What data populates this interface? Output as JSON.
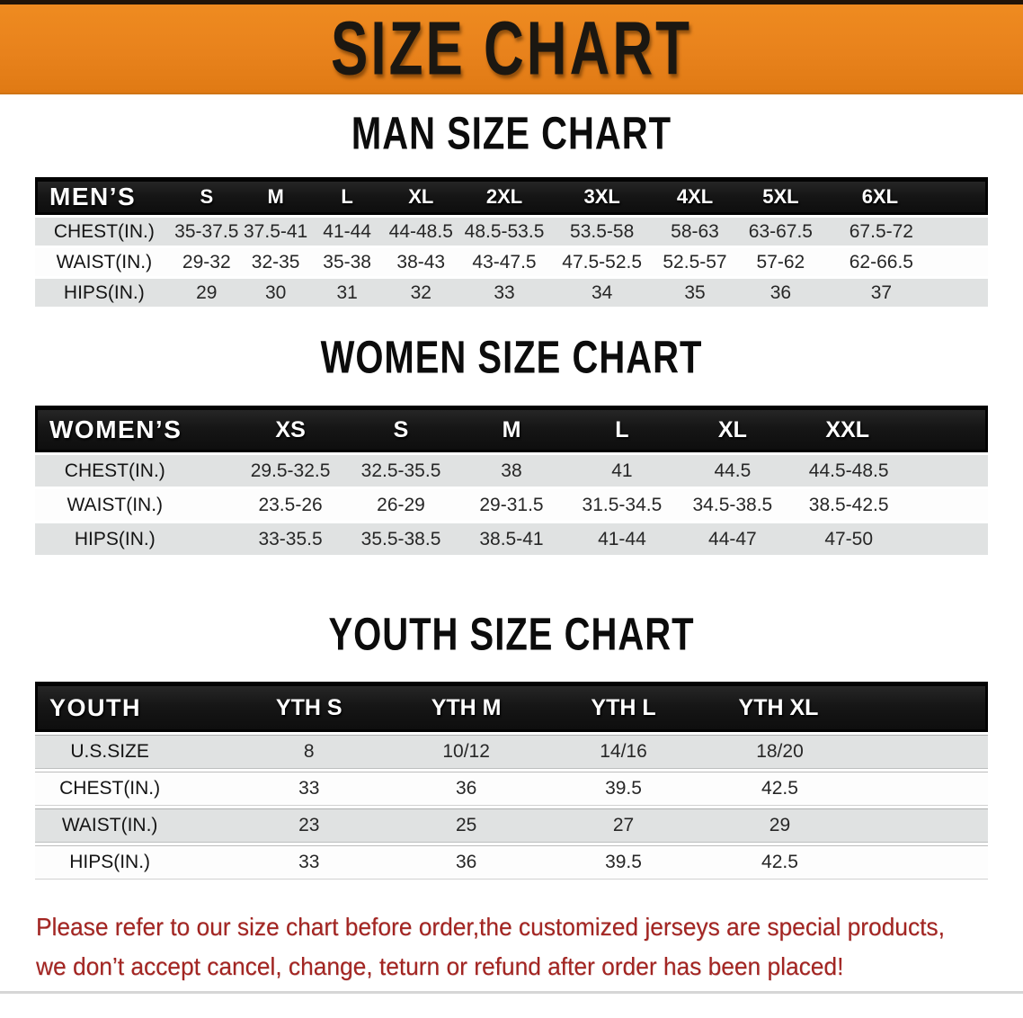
{
  "banner": {
    "title": "SIZE CHART",
    "bg_color": "#e8821c",
    "text_color": "#1b1711"
  },
  "chart_data": [
    {
      "type": "table",
      "id": "men",
      "title": "MAN SIZE CHART",
      "corner_label": "MEN’S",
      "columns": [
        "S",
        "M",
        "L",
        "XL",
        "2XL",
        "3XL",
        "4XL",
        "5XL",
        "6XL"
      ],
      "rows": [
        {
          "label": "CHEST(IN.)",
          "values": [
            "35-37.5",
            "37.5-41",
            "41-44",
            "44-48.5",
            "48.5-53.5",
            "53.5-58",
            "58-63",
            "63-67.5",
            "67.5-72"
          ]
        },
        {
          "label": "WAIST(IN.)",
          "values": [
            "29-32",
            "32-35",
            "35-38",
            "38-43",
            "43-47.5",
            "47.5-52.5",
            "52.5-57",
            "57-62",
            "62-66.5"
          ]
        },
        {
          "label": "HIPS(IN.)",
          "values": [
            "29",
            "30",
            "31",
            "32",
            "33",
            "34",
            "35",
            "36",
            "37"
          ]
        }
      ]
    },
    {
      "type": "table",
      "id": "women",
      "title": "WOMEN SIZE CHART",
      "corner_label": "WOMEN’S",
      "columns": [
        "XS",
        "S",
        "M",
        "L",
        "XL",
        "XXL"
      ],
      "rows": [
        {
          "label": "CHEST(IN.)",
          "values": [
            "29.5-32.5",
            "32.5-35.5",
            "38",
            "41",
            "44.5",
            "44.5-48.5"
          ]
        },
        {
          "label": "WAIST(IN.)",
          "values": [
            "23.5-26",
            "26-29",
            "29-31.5",
            "31.5-34.5",
            "34.5-38.5",
            "38.5-42.5"
          ]
        },
        {
          "label": "HIPS(IN.)",
          "values": [
            "33-35.5",
            "35.5-38.5",
            "38.5-41",
            "41-44",
            "44-47",
            "47-50"
          ]
        }
      ]
    },
    {
      "type": "table",
      "id": "youth",
      "title": "YOUTH SIZE CHART",
      "corner_label": "YOUTH",
      "columns": [
        "YTH S",
        "YTH M",
        "YTH L",
        "YTH XL"
      ],
      "rows": [
        {
          "label": "U.S.SIZE",
          "values": [
            "8",
            "10/12",
            "14/16",
            "18/20"
          ]
        },
        {
          "label": "CHEST(IN.)",
          "values": [
            "33",
            "36",
            "39.5",
            "42.5"
          ]
        },
        {
          "label": "WAIST(IN.)",
          "values": [
            "23",
            "25",
            "27",
            "29"
          ]
        },
        {
          "label": "HIPS(IN.)",
          "values": [
            "33",
            "36",
            "39.5",
            "42.5"
          ]
        }
      ]
    }
  ],
  "disclaimer": {
    "line1": "Please refer to our size chart before order,the customized jerseys are special products,",
    "line2": "we don’t accept cancel, change, teturn or refund after order has been placed!",
    "color": "#a32522"
  },
  "colors": {
    "header_bar": "#1b1b1b",
    "row_stripe": "#e0e2e2",
    "row_white": "#fdfdfd"
  }
}
